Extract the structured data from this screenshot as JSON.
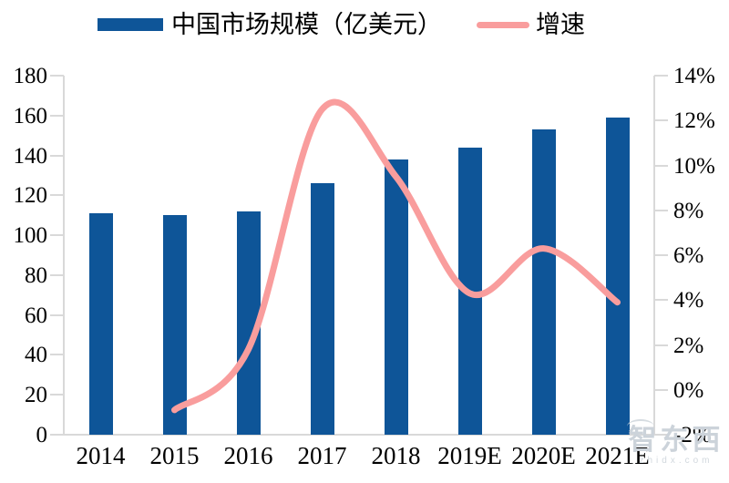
{
  "chart_data": {
    "type": "bar+line combo",
    "title": "",
    "categories": [
      "2014",
      "2015",
      "2016",
      "2017",
      "2018",
      "2019E",
      "2020E",
      "2021E"
    ],
    "series": [
      {
        "name": "中国市场规模（亿美元）",
        "type": "bar",
        "axis": "left",
        "color": "#0e5598",
        "values": [
          111,
          110,
          112,
          126,
          138,
          144,
          153,
          159
        ]
      },
      {
        "name": "增速",
        "type": "line",
        "axis": "right",
        "color": "#f99d9d",
        "unit": "%",
        "values": [
          null,
          -0.9,
          1.8,
          12.5,
          9.5,
          4.3,
          6.3,
          3.9
        ]
      }
    ],
    "left_axis": {
      "min": 0,
      "max": 180,
      "step": 20,
      "tick_labels": [
        "0",
        "20",
        "40",
        "60",
        "80",
        "100",
        "120",
        "140",
        "160",
        "180"
      ]
    },
    "right_axis": {
      "min": -2,
      "max": 14,
      "step": 2,
      "tick_labels": [
        "-2%",
        "0%",
        "2%",
        "4%",
        "6%",
        "8%",
        "10%",
        "12%",
        "14%"
      ]
    },
    "legend_position": "top",
    "grid": false,
    "line_smooth": true
  },
  "watermark": {
    "logo": "智东西",
    "domain": "zhidx.com"
  },
  "colors": {
    "bar": "#0e5598",
    "line": "#f99d9d",
    "axis": "#d9d9d9",
    "text": "#000000",
    "watermark": "#ccd3da"
  }
}
